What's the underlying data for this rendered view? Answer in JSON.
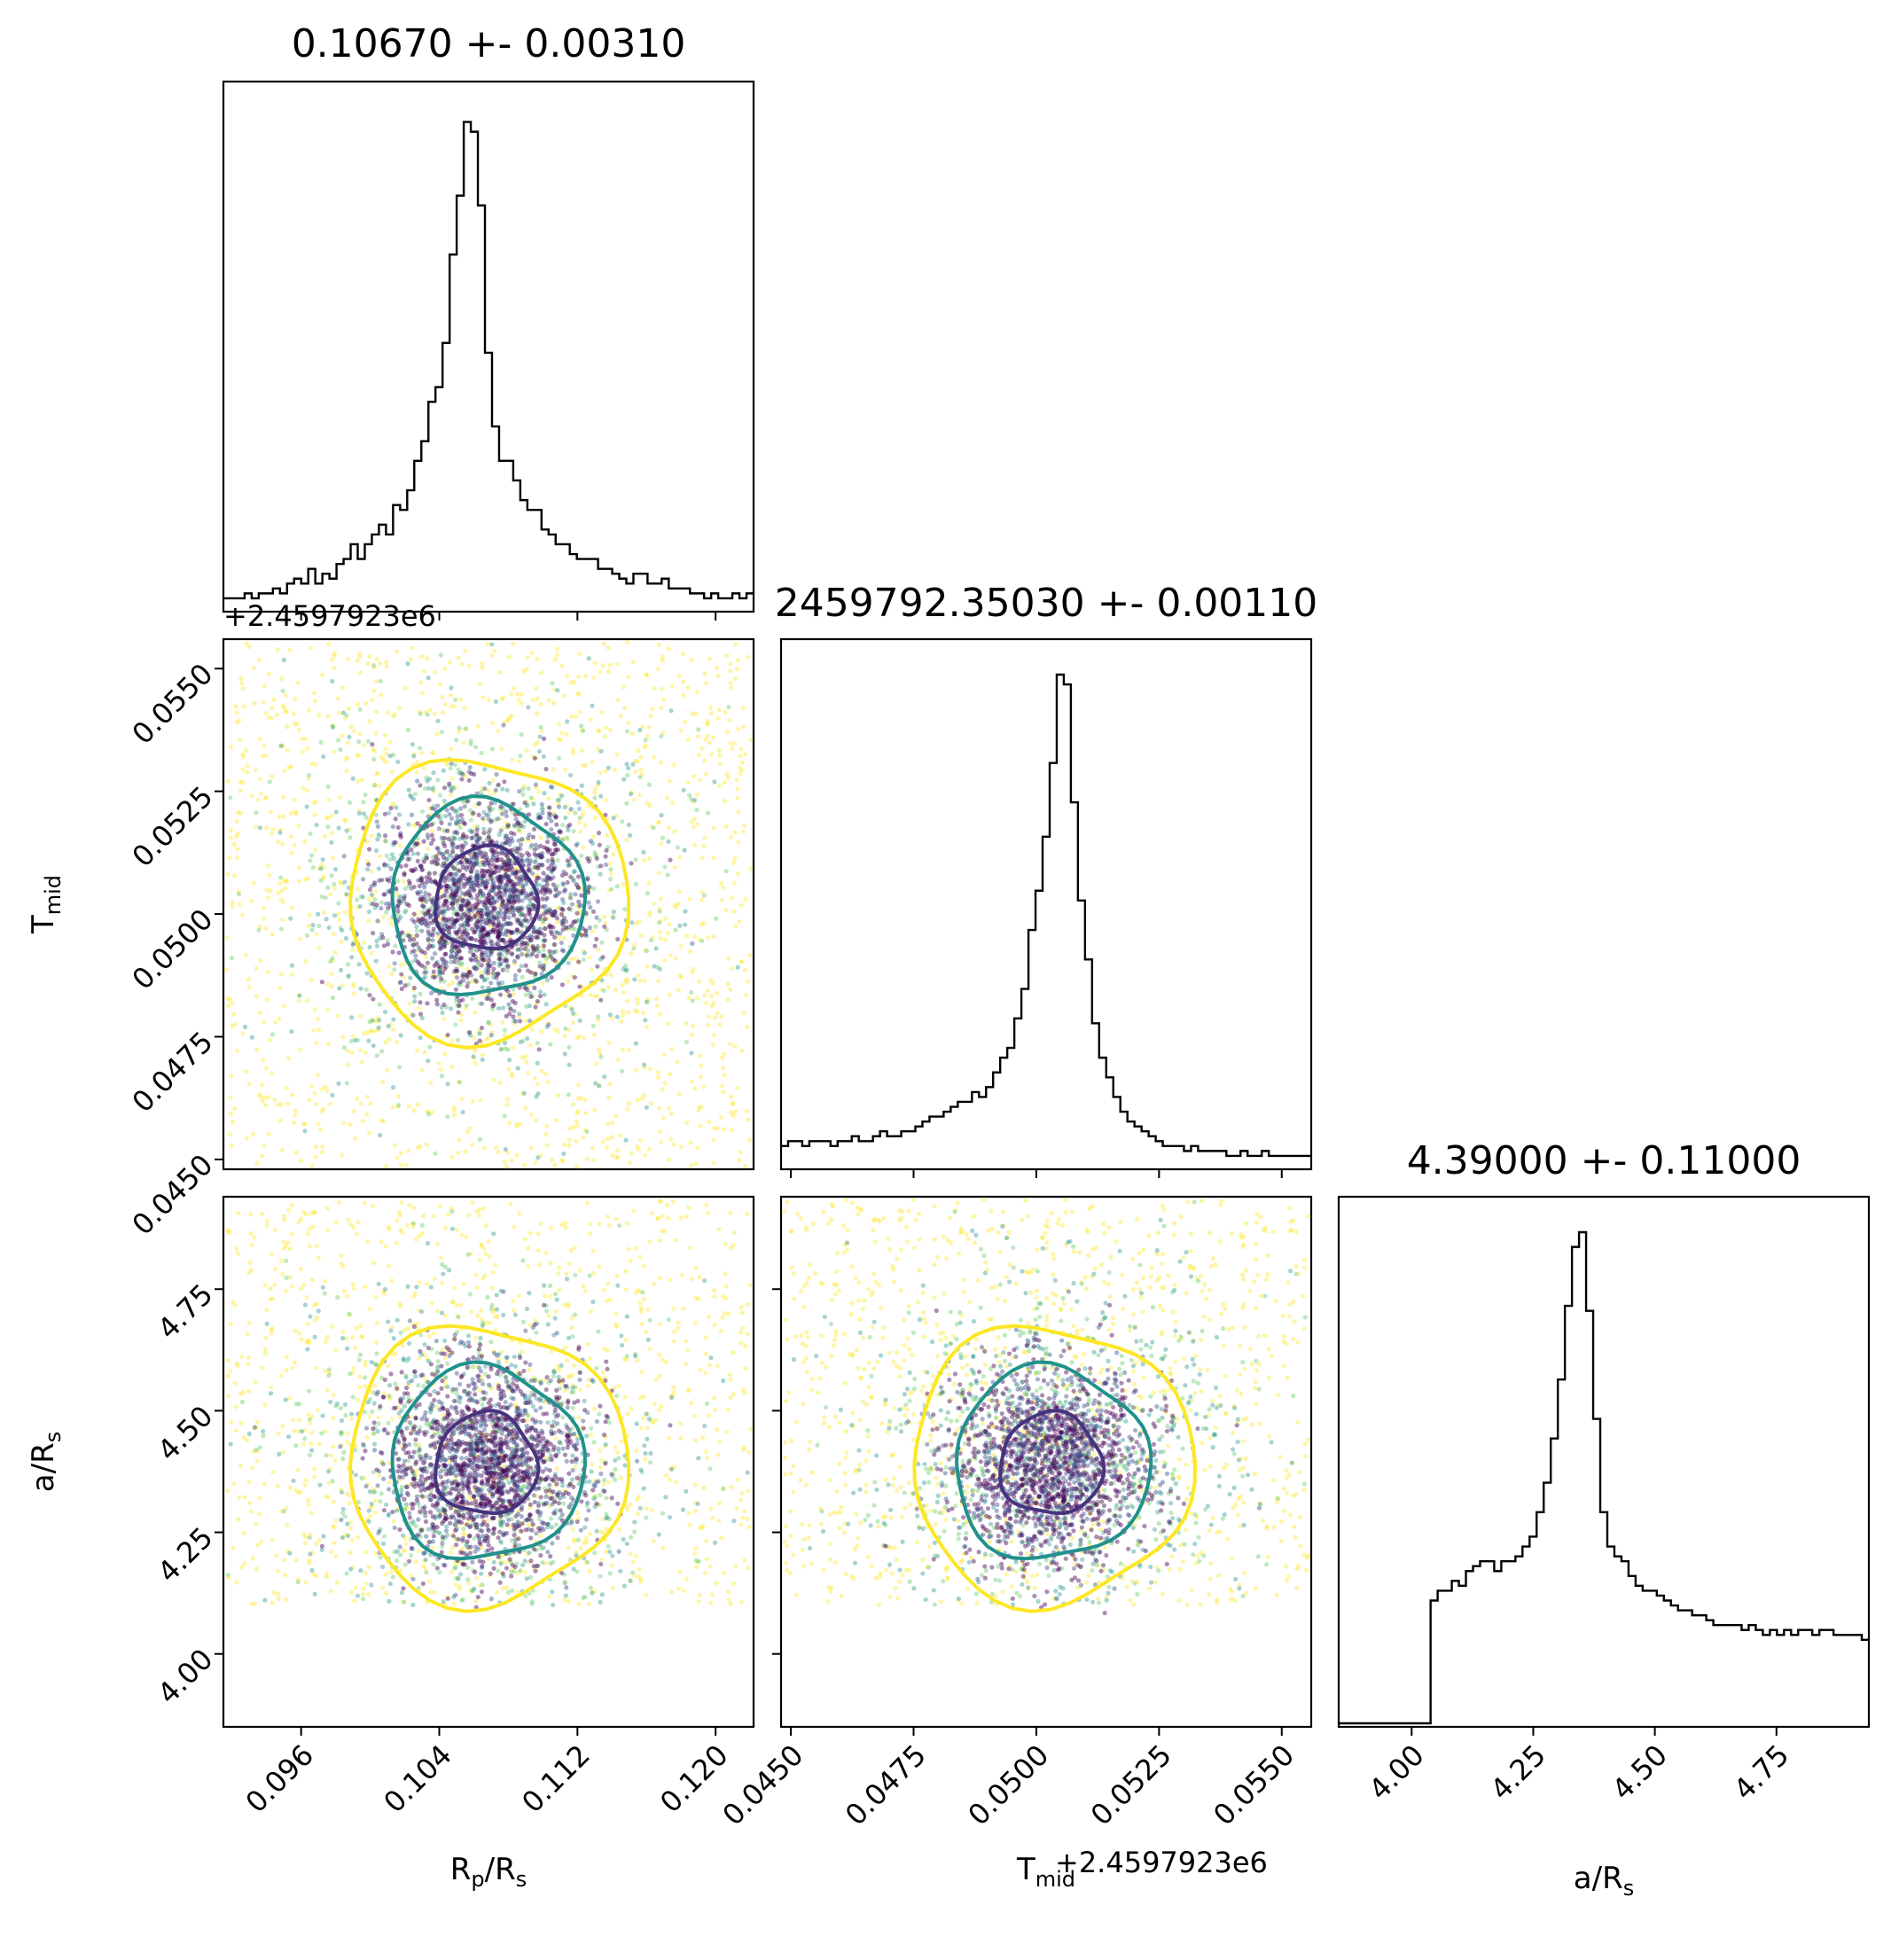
{
  "chart_data": {
    "type": "corner",
    "parameters": [
      {
        "key": "rprs",
        "label": "R",
        "label_sub": "p",
        "label_tail": "/R",
        "label_sub2": "s",
        "mean": 0.1067,
        "std": 0.0031,
        "range": [
          0.0915,
          0.1222
        ]
      },
      {
        "key": "tmid",
        "label": "T",
        "label_sub": "mid",
        "label_tail": "",
        "label_sub2": "",
        "mean": 2459792.3503,
        "std": 0.0011,
        "offset": 2459792.3,
        "range": [
          0.0448,
          0.0556
        ]
      },
      {
        "key": "ars",
        "label": "a/R",
        "label_sub": "s",
        "label_tail": "",
        "label_sub2": "",
        "mean": 4.39,
        "std": 0.11,
        "range": [
          3.85,
          4.94
        ]
      }
    ],
    "titles": [
      "0.10670 +- 0.00310",
      "2459792.35030 +- 0.00110",
      "4.39000 +- 0.11000"
    ],
    "offset_text": "+2.4597923e6",
    "ticks": {
      "rprs": [
        "0.096",
        "0.104",
        "0.112",
        "0.120"
      ],
      "tmid": [
        "0.0450",
        "0.0475",
        "0.0500",
        "0.0525",
        "0.0550"
      ],
      "ars": [
        "4.00",
        "4.25",
        "4.50",
        "4.75"
      ]
    },
    "histograms": {
      "rprs": [
        0.02,
        0.02,
        0.02,
        0.03,
        0.02,
        0.03,
        0.03,
        0.04,
        0.03,
        0.05,
        0.06,
        0.05,
        0.08,
        0.05,
        0.07,
        0.06,
        0.09,
        0.1,
        0.13,
        0.1,
        0.13,
        0.15,
        0.17,
        0.15,
        0.21,
        0.2,
        0.24,
        0.3,
        0.34,
        0.42,
        0.45,
        0.54,
        0.72,
        0.84,
        0.99,
        0.97,
        0.82,
        0.52,
        0.37,
        0.3,
        0.3,
        0.26,
        0.22,
        0.2,
        0.2,
        0.16,
        0.15,
        0.13,
        0.13,
        0.11,
        0.1,
        0.1,
        0.1,
        0.08,
        0.08,
        0.07,
        0.06,
        0.05,
        0.07,
        0.07,
        0.05,
        0.05,
        0.06,
        0.04,
        0.04,
        0.04,
        0.03,
        0.03,
        0.02,
        0.03,
        0.02,
        0.02,
        0.03,
        0.02,
        0.03
      ],
      "tmid": [
        0.04,
        0.05,
        0.05,
        0.04,
        0.05,
        0.05,
        0.05,
        0.04,
        0.05,
        0.05,
        0.06,
        0.05,
        0.05,
        0.06,
        0.07,
        0.06,
        0.06,
        0.07,
        0.07,
        0.08,
        0.09,
        0.1,
        0.1,
        0.11,
        0.12,
        0.13,
        0.13,
        0.15,
        0.14,
        0.16,
        0.19,
        0.22,
        0.24,
        0.3,
        0.36,
        0.48,
        0.56,
        0.67,
        0.82,
        1.0,
        0.98,
        0.74,
        0.54,
        0.42,
        0.29,
        0.22,
        0.18,
        0.14,
        0.11,
        0.09,
        0.08,
        0.07,
        0.06,
        0.05,
        0.04,
        0.04,
        0.04,
        0.03,
        0.04,
        0.03,
        0.03,
        0.03,
        0.03,
        0.02,
        0.02,
        0.03,
        0.02,
        0.02,
        0.03,
        0.02,
        0.02,
        0.02,
        0.02,
        0.02,
        0.02
      ],
      "ars": [
        0,
        0,
        0,
        0,
        0,
        0,
        0,
        0,
        0,
        0,
        0,
        0,
        0,
        0.25,
        0.27,
        0.27,
        0.29,
        0.28,
        0.31,
        0.32,
        0.33,
        0.33,
        0.31,
        0.33,
        0.33,
        0.34,
        0.36,
        0.38,
        0.43,
        0.49,
        0.58,
        0.7,
        0.85,
        0.97,
        1.0,
        0.84,
        0.62,
        0.43,
        0.36,
        0.34,
        0.33,
        0.3,
        0.28,
        0.27,
        0.27,
        0.26,
        0.25,
        0.24,
        0.23,
        0.23,
        0.22,
        0.22,
        0.21,
        0.2,
        0.2,
        0.2,
        0.2,
        0.19,
        0.2,
        0.19,
        0.18,
        0.19,
        0.18,
        0.19,
        0.18,
        0.19,
        0.19,
        0.18,
        0.19,
        0.19,
        0.18,
        0.18,
        0.18,
        0.18,
        0.17
      ]
    },
    "contour_levels": [
      "0.5-sigma",
      "1-sigma",
      "1.5-sigma"
    ],
    "contour_colors": [
      "#46337e",
      "#21918c",
      "#fde725"
    ],
    "grid": false,
    "legend": "none"
  },
  "colors": {
    "inner": "#440154",
    "mid": "#21918c",
    "outer": "#fde725",
    "ring1": "#46337e"
  }
}
